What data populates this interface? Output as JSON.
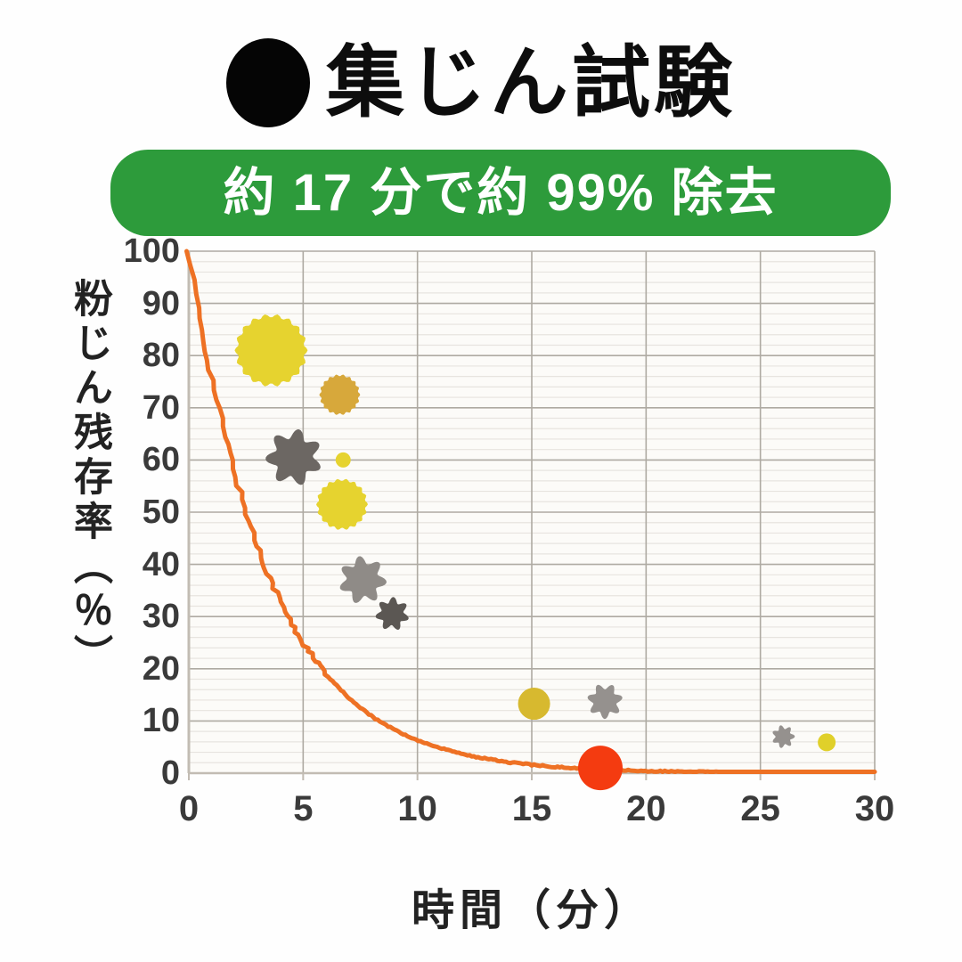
{
  "header": {
    "bullet_icon": "filled-circle",
    "title": "集じん試験"
  },
  "banner": {
    "text": "約 17 分で約 99% 除去",
    "bg": "#2d9b3b",
    "text_color": "#ffffff"
  },
  "chart_data": {
    "type": "line",
    "xlabel": "時間（分）",
    "ylabel": "粉じん残存率（％）",
    "xlim": [
      0,
      30
    ],
    "ylim": [
      0,
      100
    ],
    "xticks": [
      0,
      5,
      10,
      15,
      20,
      25,
      30
    ],
    "yticks": [
      0,
      10,
      20,
      30,
      40,
      50,
      60,
      70,
      80,
      90,
      100
    ],
    "grid": {
      "x_major_step": 5,
      "y_major_step": 10,
      "y_minor_step": 2,
      "major_color": "#aeaaa2",
      "minor_color": "#e7e4df",
      "axis_color": "#c2bcb3",
      "plot_bg": "#fcfbf8"
    },
    "series": [
      {
        "name": "dust-residual-rate",
        "color": "#ee7124",
        "stroke_width": 5,
        "points": [
          [
            0,
            100
          ],
          [
            0.3,
            91
          ],
          [
            0.6,
            84
          ],
          [
            1,
            76
          ],
          [
            1.4,
            68
          ],
          [
            1.8,
            61
          ],
          [
            2.2,
            54.5
          ],
          [
            2.6,
            48.5
          ],
          [
            3,
            43.5
          ],
          [
            3.4,
            39
          ],
          [
            3.8,
            35
          ],
          [
            4.2,
            31
          ],
          [
            4.6,
            27.8
          ],
          [
            5,
            25
          ],
          [
            5.5,
            21.8
          ],
          [
            6,
            19
          ],
          [
            6.5,
            16.6
          ],
          [
            7,
            14.4
          ],
          [
            7.5,
            12.6
          ],
          [
            8,
            10.9
          ],
          [
            8.5,
            9.5
          ],
          [
            9,
            8.3
          ],
          [
            9.5,
            7.2
          ],
          [
            10,
            6.3
          ],
          [
            10.5,
            5.5
          ],
          [
            11,
            4.8
          ],
          [
            11.5,
            4.2
          ],
          [
            12,
            3.6
          ],
          [
            13,
            2.75
          ],
          [
            14,
            2.1
          ],
          [
            15,
            1.6
          ],
          [
            16,
            1.2
          ],
          [
            17,
            0.92
          ],
          [
            18,
            0.7
          ],
          [
            19,
            0.54
          ],
          [
            20,
            0.41
          ],
          [
            21,
            0.31
          ],
          [
            22,
            0.24
          ],
          [
            23,
            0.18
          ],
          [
            24,
            0.14
          ],
          [
            25,
            0.11
          ],
          [
            26,
            0.08
          ],
          [
            27,
            0.06
          ],
          [
            28,
            0.05
          ],
          [
            29,
            0.04
          ],
          [
            30,
            0.03
          ]
        ]
      }
    ],
    "marker": {
      "name": "99-percent-removal-point",
      "x": 18,
      "y": 1,
      "radius": 25,
      "color": "#f43b10"
    },
    "decorations": [
      {
        "name": "pollen-sunburst-large",
        "shape": "sunburst",
        "x": 3.6,
        "y": 81,
        "r": 41,
        "color": "#e6d32f"
      },
      {
        "name": "pollen-sunburst-gold",
        "shape": "sunburst",
        "x": 6.6,
        "y": 72.5,
        "r": 23,
        "color": "#d7a83b"
      },
      {
        "name": "dust-flower-dark",
        "shape": "flower",
        "x": 4.6,
        "y": 60.5,
        "r": 32,
        "color": "#6c6763"
      },
      {
        "name": "pollen-dot-tiny",
        "shape": "circle",
        "x": 6.75,
        "y": 60,
        "r": 8.5,
        "color": "#e6d32f"
      },
      {
        "name": "pollen-sunburst-medium",
        "shape": "sunburst",
        "x": 6.7,
        "y": 51.5,
        "r": 29,
        "color": "#e6d32f"
      },
      {
        "name": "dust-flower-light",
        "shape": "flower",
        "x": 7.6,
        "y": 37,
        "r": 27,
        "color": "#8f8b87"
      },
      {
        "name": "dust-flower-darker",
        "shape": "flower",
        "x": 8.9,
        "y": 30.5,
        "r": 19,
        "color": "#5b5753"
      },
      {
        "name": "pollen-circle-gold",
        "shape": "circle",
        "x": 15.1,
        "y": 13.3,
        "r": 18,
        "color": "#d7b92f"
      },
      {
        "name": "dust-flower-mid",
        "shape": "flower",
        "x": 18.2,
        "y": 13.8,
        "r": 20,
        "color": "#95918e"
      },
      {
        "name": "dust-flower-tiny",
        "shape": "flower",
        "x": 26,
        "y": 7,
        "r": 13,
        "color": "#95918e"
      },
      {
        "name": "pollen-dot-small",
        "shape": "circle",
        "x": 27.9,
        "y": 5.9,
        "r": 10,
        "color": "#e0d02a"
      }
    ],
    "layout": {
      "plot_left": 212,
      "plot_right": 982,
      "plot_top": 282,
      "plot_bottom": 868
    }
  }
}
